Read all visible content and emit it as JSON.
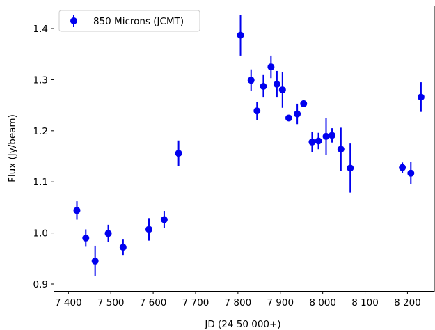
{
  "chart_data": {
    "type": "scatter",
    "title": "",
    "xlabel": "JD (24 50 000+)",
    "ylabel": "Flux (Jy/beam)",
    "xlim": [
      7365,
      8265
    ],
    "ylim": [
      0.885,
      1.445
    ],
    "xticks": [
      7400,
      7500,
      7600,
      7700,
      7800,
      7900,
      8000,
      8100,
      8200
    ],
    "xtick_labels": [
      "7 400",
      "7 500",
      "7 600",
      "7 700",
      "7 800",
      "7 900",
      "8 000",
      "8 100",
      "8 200"
    ],
    "yticks": [
      0.9,
      1.0,
      1.1,
      1.2,
      1.3,
      1.4
    ],
    "ytick_labels": [
      "0.9",
      "1.0",
      "1.1",
      "1.2",
      "1.3",
      "1.4"
    ],
    "grid": false,
    "legend_position": "top-left",
    "color": "#0000ee",
    "series": [
      {
        "name": "850 Microns (JCMT)",
        "marker": "circle",
        "error_bars": true,
        "points": [
          {
            "x": 7420,
            "y": 1.044,
            "err": 0.018
          },
          {
            "x": 7441,
            "y": 0.99,
            "err": 0.017
          },
          {
            "x": 7463,
            "y": 0.945,
            "err": 0.03
          },
          {
            "x": 7494,
            "y": 0.999,
            "err": 0.017
          },
          {
            "x": 7529,
            "y": 0.972,
            "err": 0.015
          },
          {
            "x": 7590,
            "y": 1.007,
            "err": 0.022
          },
          {
            "x": 7626,
            "y": 1.026,
            "err": 0.017
          },
          {
            "x": 7660,
            "y": 1.156,
            "err": 0.025
          },
          {
            "x": 7806,
            "y": 1.387,
            "err": 0.04
          },
          {
            "x": 7831,
            "y": 1.299,
            "err": 0.021
          },
          {
            "x": 7845,
            "y": 1.239,
            "err": 0.018
          },
          {
            "x": 7860,
            "y": 1.287,
            "err": 0.022
          },
          {
            "x": 7878,
            "y": 1.325,
            "err": 0.022
          },
          {
            "x": 7892,
            "y": 1.291,
            "err": 0.026
          },
          {
            "x": 7905,
            "y": 1.28,
            "err": 0.035
          },
          {
            "x": 7920,
            "y": 1.225,
            "err": 0.006
          },
          {
            "x": 7940,
            "y": 1.233,
            "err": 0.02
          },
          {
            "x": 7955,
            "y": 1.253,
            "err": 0.004
          },
          {
            "x": 7975,
            "y": 1.178,
            "err": 0.02
          },
          {
            "x": 7990,
            "y": 1.18,
            "err": 0.016
          },
          {
            "x": 8008,
            "y": 1.189,
            "err": 0.036
          },
          {
            "x": 8022,
            "y": 1.191,
            "err": 0.014
          },
          {
            "x": 8043,
            "y": 1.164,
            "err": 0.042
          },
          {
            "x": 8065,
            "y": 1.127,
            "err": 0.048
          },
          {
            "x": 8188,
            "y": 1.128,
            "err": 0.01
          },
          {
            "x": 8208,
            "y": 1.117,
            "err": 0.022
          },
          {
            "x": 8232,
            "y": 1.266,
            "err": 0.029
          }
        ]
      }
    ]
  }
}
